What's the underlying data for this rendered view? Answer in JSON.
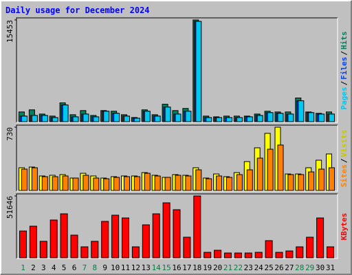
{
  "separator": "/",
  "chart_data": [
    {
      "type": "bar",
      "title": "Daily usage for December 2024",
      "ylim": [
        0,
        15453
      ],
      "yticks": [
        15453
      ],
      "series": [
        {
          "name": "Hits",
          "color": "#00805c",
          "values": [
            1480,
            1800,
            1160,
            850,
            2860,
            1060,
            1690,
            950,
            1690,
            1590,
            1060,
            635,
            1800,
            1060,
            2650,
            1690,
            2010,
            15453,
            850,
            740,
            850,
            850,
            850,
            1160,
            1590,
            1480,
            1480,
            3600,
            1480,
            1270,
            1480
          ]
        },
        {
          "name": "Files",
          "color": "#0040ff",
          "values": [
            850,
            950,
            950,
            630,
            2540,
            740,
            1160,
            740,
            1590,
            1270,
            850,
            530,
            1590,
            850,
            2220,
            1160,
            1590,
            15240,
            630,
            630,
            630,
            630,
            740,
            950,
            1380,
            1270,
            1160,
            3180,
            1380,
            1160,
            1160
          ]
        },
        {
          "name": "Pages",
          "color": "#00c8f0",
          "values": [
            850,
            950,
            950,
            630,
            2540,
            740,
            1160,
            740,
            1590,
            1270,
            850,
            530,
            1590,
            850,
            2220,
            1160,
            1590,
            15240,
            630,
            630,
            630,
            630,
            740,
            950,
            1380,
            1270,
            1160,
            3180,
            1380,
            1160,
            1160
          ]
        }
      ]
    },
    {
      "type": "bar",
      "ylim": [
        0,
        730
      ],
      "yticks": [
        730
      ],
      "series": [
        {
          "name": "Visits",
          "color": "#ffff00",
          "values": [
            262,
            270,
            167,
            175,
            183,
            143,
            198,
            167,
            143,
            159,
            167,
            167,
            206,
            175,
            151,
            183,
            175,
            262,
            143,
            190,
            159,
            206,
            333,
            492,
            659,
            730,
            190,
            190,
            262,
            349,
            421
          ]
        },
        {
          "name": "Sites",
          "color": "#ff8000",
          "values": [
            246,
            262,
            159,
            159,
            167,
            143,
            175,
            143,
            135,
            151,
            159,
            159,
            198,
            167,
            151,
            175,
            167,
            238,
            135,
            167,
            151,
            183,
            238,
            373,
            476,
            524,
            183,
            183,
            214,
            246,
            262
          ]
        }
      ]
    },
    {
      "type": "bar",
      "ylim": [
        0,
        51646
      ],
      "yticks": [
        51646
      ],
      "categories": [
        "1",
        "2",
        "3",
        "4",
        "5",
        "6",
        "7",
        "8",
        "9",
        "10",
        "11",
        "12",
        "13",
        "14",
        "15",
        "16",
        "17",
        "18",
        "19",
        "20",
        "21",
        "22",
        "23",
        "24",
        "25",
        "26",
        "27",
        "28",
        "29",
        "30",
        "31"
      ],
      "category_colors": [
        "#008040",
        "#000000",
        "#000000",
        "#000000",
        "#000000",
        "#000000",
        "#008040",
        "#008040",
        "#000000",
        "#000000",
        "#000000",
        "#000000",
        "#000000",
        "#008040",
        "#008040",
        "#000000",
        "#000000",
        "#000000",
        "#000000",
        "#000000",
        "#008040",
        "#008040",
        "#000000",
        "#000000",
        "#000000",
        "#000000",
        "#000000",
        "#008040",
        "#008040",
        "#000000",
        "#000000"
      ],
      "series": [
        {
          "name": "KBytes",
          "color": "#ff0000",
          "values": [
            22380,
            26400,
            13770,
            31560,
            36730,
            18940,
            9180,
            13770,
            30410,
            35580,
            33280,
            9180,
            27540,
            36730,
            45910,
            40170,
            17210,
            51646,
            4590,
            6310,
            4020,
            4020,
            4020,
            4590,
            14350,
            4590,
            5740,
            9180,
            17210,
            33280,
            9180
          ]
        }
      ]
    }
  ]
}
